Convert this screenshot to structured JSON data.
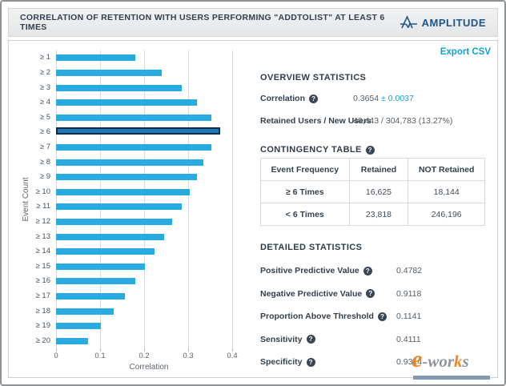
{
  "header": {
    "title": "CORRELATION OF RETENTION WITH USERS PERFORMING \"ADDTOLIST\" AT LEAST 6 TIMES",
    "brand": "AMPLITUDE"
  },
  "export_label": "Export CSV",
  "icons": {
    "help": "?"
  },
  "chart_data": {
    "type": "bar",
    "orientation": "horizontal",
    "xlabel": "Correlation",
    "ylabel": "Event Count",
    "xlim": [
      0,
      0.4
    ],
    "xticks": [
      "0",
      "0.1",
      "0.2",
      "0.3",
      "0.4"
    ],
    "grid": true,
    "categories": [
      "≥ 1",
      "≥ 2",
      "≥ 3",
      "≥ 4",
      "≥ 5",
      "≥ 6",
      "≥ 7",
      "≥ 8",
      "≥ 9",
      "≥ 10",
      "≥ 11",
      "≥ 12",
      "≥ 13",
      "≥ 14",
      "≥ 15",
      "≥ 16",
      "≥ 17",
      "≥ 18",
      "≥ 19",
      "≥ 20"
    ],
    "values": [
      0.18,
      0.24,
      0.285,
      0.32,
      0.353,
      0.3654,
      0.353,
      0.335,
      0.32,
      0.303,
      0.285,
      0.264,
      0.245,
      0.224,
      0.202,
      0.18,
      0.157,
      0.13,
      0.102,
      0.072
    ],
    "highlighted_index": 5,
    "bar_color": "#29abe2",
    "highlight_color": "#1d79b4",
    "highlight_border": "#0e2c49"
  },
  "overview": {
    "heading": "OVERVIEW STATISTICS",
    "correlation_label": "Correlation",
    "correlation_value": "0.3654",
    "correlation_error": "± 0.0037",
    "retained_label": "Retained Users / New Users",
    "retained_value": "40,443 / 304,783 (13.27%)"
  },
  "contingency": {
    "heading": "CONTINGENCY TABLE",
    "headers": [
      "Event Frequency",
      "Retained",
      "NOT Retained"
    ],
    "rows": [
      [
        "≥ 6 Times",
        "16,625",
        "18,144"
      ],
      [
        "< 6 Times",
        "23,818",
        "246,196"
      ]
    ]
  },
  "detailed": {
    "heading": "DETAILED STATISTICS",
    "rows": [
      {
        "label": "Positive Predictive Value",
        "value": "0.4782"
      },
      {
        "label": "Negative Predictive Value",
        "value": "0.9118"
      },
      {
        "label": "Proportion Above Threshold",
        "value": "0.1141"
      },
      {
        "label": "Sensitivity",
        "value": "0.4111"
      },
      {
        "label": "Specificity",
        "value": "0.9314"
      }
    ]
  },
  "watermark": {
    "e": "e",
    "mid": "-wor",
    "k": "k",
    "s": "s"
  },
  "colors": {
    "accent_blue": "#1b9cd9",
    "bar_blue": "#29abe2",
    "highlight_blue": "#1d79b4",
    "navy_text": "#32404e"
  }
}
